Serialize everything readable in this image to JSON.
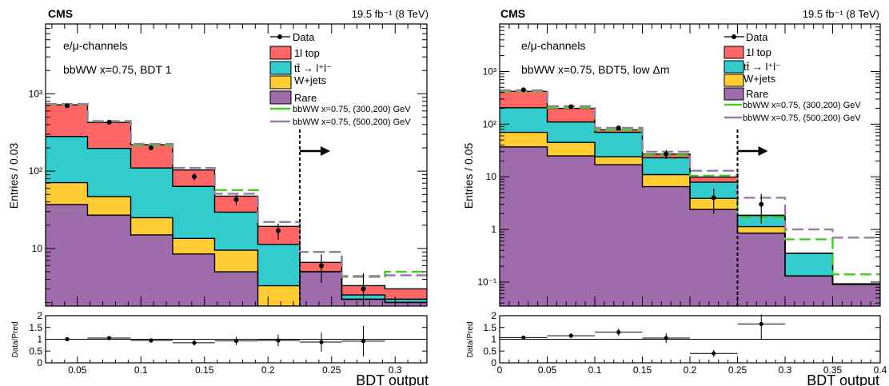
{
  "chart_data": [
    {
      "type": "histogram",
      "subtype": "stacked-log",
      "experiment": "CMS",
      "lumi": "19.5 fb⁻¹ (8 TeV)",
      "channel": "e/μ-channels",
      "selection": "bbWW x=0.75, BDT 1",
      "ylabel": "Entries / 0.03",
      "xlabel": "BDT output",
      "ratio_ylabel": "Data/Pred",
      "xlim": [
        0.025,
        0.325
      ],
      "ylim": [
        1.8,
        8000
      ],
      "log_y": true,
      "x_ticks": [
        0.05,
        0.1,
        0.15,
        0.2,
        0.25,
        0.3
      ],
      "x_tick_labels": [
        "0.05",
        "0.1",
        "0.15",
        "0.2",
        "0.25",
        "0.3"
      ],
      "y_ticks": [
        10,
        100,
        1000
      ],
      "y_tick_labels": [
        "10",
        "10²",
        "10³"
      ],
      "ratio_ylim": [
        0,
        2
      ],
      "ratio_ticks": [
        0,
        0.5,
        1,
        1.5,
        2
      ],
      "ratio_tick_labels": [
        "0",
        "0.5",
        "1",
        "1.5",
        "2"
      ],
      "cut_x": 0.225,
      "bin_edges": [
        0.025,
        0.058,
        0.092,
        0.125,
        0.158,
        0.192,
        0.225,
        0.258,
        0.292,
        0.325
      ],
      "stack": [
        {
          "name": "Rare",
          "color": "#9e6bab",
          "values": [
            37,
            27,
            15,
            8.5,
            5,
            1.8,
            5,
            2.2,
            2.0
          ]
        },
        {
          "name": "W+jets",
          "color": "#ffcc33",
          "values": [
            34,
            20,
            10,
            5,
            4.5,
            1.5,
            0.01,
            0.01,
            0.01
          ]
        },
        {
          "name": "tt̄ → l⁺l⁻",
          "color": "#33cccc",
          "values": [
            210,
            150,
            85,
            50,
            20,
            8,
            0.01,
            0.3,
            0.2
          ]
        },
        {
          "name": "1l top",
          "color": "#ff6666",
          "values": [
            440,
            230,
            110,
            40,
            18,
            8,
            1.6,
            0.8,
            0.8
          ]
        }
      ],
      "signals": [
        {
          "name": "bbWW x=0.75, (300,200) GeV",
          "color": "#44cc22",
          "values": [
            730,
            440,
            215,
            110,
            57,
            22,
            9,
            4.3,
            5.0
          ]
        },
        {
          "name": "bbWW x=0.75, (500,200) GeV",
          "color": "#997aa3",
          "values": [
            740,
            445,
            225,
            110,
            51,
            22,
            9,
            4.4,
            4.5
          ]
        }
      ],
      "data": {
        "name": "Data",
        "x": [
          0.042,
          0.075,
          0.108,
          0.142,
          0.175,
          0.208,
          0.242,
          0.275
        ],
        "y": [
          700,
          430,
          200,
          85,
          43,
          17,
          6,
          3
        ],
        "yerr": [
          27,
          21,
          14,
          9,
          6.5,
          4,
          2.4,
          1.8
        ]
      },
      "ratio": {
        "x": [
          0.042,
          0.075,
          0.108,
          0.142,
          0.175,
          0.208,
          0.242,
          0.275
        ],
        "y": [
          1.0,
          1.05,
          0.95,
          0.85,
          0.93,
          0.95,
          0.88,
          0.92
        ],
        "yerr": [
          0.05,
          0.07,
          0.09,
          0.12,
          0.17,
          0.25,
          0.4,
          0.65
        ]
      },
      "legend_position": "top-right"
    },
    {
      "type": "histogram",
      "subtype": "stacked-log",
      "experiment": "CMS",
      "lumi": "19.5 fb⁻¹ (8 TeV)",
      "channel": "e/μ-channels",
      "selection": "bbWW x=0.75, BDT5, low Δm",
      "ylabel": "Entries / 0.05",
      "xlabel": "BDT output",
      "ratio_ylabel": "Data/Pred",
      "xlim": [
        0,
        0.4
      ],
      "ylim": [
        0.035,
        8000
      ],
      "log_y": true,
      "x_ticks": [
        0,
        0.05,
        0.1,
        0.15,
        0.2,
        0.25,
        0.3,
        0.35,
        0.4
      ],
      "x_tick_labels": [
        "0",
        "0.05",
        "0.1",
        "0.15",
        "0.2",
        "0.25",
        "0.3",
        "0.35",
        "0.4"
      ],
      "y_ticks": [
        0.1,
        1,
        10,
        100,
        1000
      ],
      "y_tick_labels": [
        "10⁻¹",
        "1",
        "10",
        "10²",
        "10³"
      ],
      "ratio_ylim": [
        0,
        2
      ],
      "ratio_ticks": [
        0,
        0.5,
        1,
        1.5,
        2
      ],
      "ratio_tick_labels": [
        "0",
        "0.5",
        "1",
        "1.5",
        "2"
      ],
      "cut_x": 0.25,
      "bin_edges": [
        0,
        0.05,
        0.1,
        0.15,
        0.2,
        0.25,
        0.3,
        0.35,
        0.4
      ],
      "stack": [
        {
          "name": "Rare",
          "color": "#9e6bab",
          "values": [
            37,
            25,
            17,
            6.5,
            2.4,
            0.85,
            0.13,
            0.09
          ]
        },
        {
          "name": "W+jets",
          "color": "#ffcc33",
          "values": [
            33,
            20,
            7,
            4.5,
            1.5,
            0.28,
            0.001,
            0.001
          ]
        },
        {
          "name": "tt̄ → l⁺l⁻",
          "color": "#33cccc",
          "values": [
            135,
            65,
            46,
            12,
            4,
            0.72,
            0.22,
            0.001
          ]
        },
        {
          "name": "1l top",
          "color": "#ff6666",
          "values": [
            215,
            90,
            8,
            4,
            2,
            0.001,
            0.001,
            0.001
          ]
        }
      ],
      "signals": [
        {
          "name": "bbWW x=0.75, (300,200) GeV",
          "color": "#44cc22",
          "values": [
            420,
            205,
            78,
            26,
            10.5,
            1.7,
            0.65,
            0.14
          ]
        },
        {
          "name": "bbWW x=0.75, (500,200) GeV",
          "color": "#997aa3",
          "values": [
            440,
            220,
            85,
            30,
            13,
            4,
            1.0,
            0.7
          ]
        }
      ],
      "data": {
        "name": "Data",
        "x": [
          0.025,
          0.075,
          0.125,
          0.175,
          0.225,
          0.275
        ],
        "y": [
          450,
          215,
          85,
          27,
          4,
          3
        ],
        "yerr": [
          21,
          15,
          9,
          5.2,
          2,
          1.7
        ]
      },
      "ratio": {
        "x": [
          0.025,
          0.075,
          0.125,
          0.175,
          0.225,
          0.275
        ],
        "y": [
          1.07,
          1.15,
          1.3,
          1.05,
          0.4,
          1.65
        ],
        "yerr": [
          0.06,
          0.1,
          0.15,
          0.2,
          0.15,
          0.65
        ]
      },
      "legend_position": "top-right"
    }
  ]
}
